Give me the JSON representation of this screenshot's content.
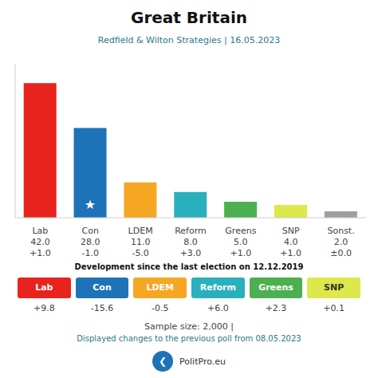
{
  "chart_data": {
    "type": "bar",
    "title": "Great Britain",
    "subtitle": "Redfield & Wilton Strategies | 16.05.2023",
    "subtitle_color": "#2a7a8c",
    "categories": [
      "Lab",
      "Con",
      "LDEM",
      "Reform",
      "Greens",
      "SNP",
      "Sonst."
    ],
    "values": [
      42.0,
      28.0,
      11.0,
      8.0,
      5.0,
      4.0,
      2.0
    ],
    "value_labels": [
      "42.0",
      "28.0",
      "11.0",
      "8.0",
      "5.0",
      "4.0",
      "2.0"
    ],
    "changes": [
      "+1.0",
      "-1.0",
      "-5.0",
      "+3.0",
      "+1.0",
      "+1.0",
      "±0.0"
    ],
    "colors": [
      "#e8231e",
      "#1e72b8",
      "#f5a623",
      "#2ab0bc",
      "#4caf50",
      "#dde84a",
      "#9e9e9e"
    ],
    "ylim": [
      0,
      48
    ],
    "tick_labels": false,
    "grid": false,
    "data_labels": true,
    "annotations": [
      {
        "text": "★",
        "category": "Con"
      }
    ],
    "development": {
      "title": "Development since the last election on 12.12.2019",
      "categories": [
        "Lab",
        "Con",
        "LDEM",
        "Reform",
        "Greens",
        "SNP"
      ],
      "changes": [
        "+9.8",
        "-15.6",
        "-0.5",
        "+6.0",
        "+2.3",
        "+0.1"
      ],
      "colors": [
        "#e8231e",
        "#1e72b8",
        "#f5a623",
        "#2ab0bc",
        "#4caf50",
        "#dde84a"
      ],
      "text_colors": [
        "#ffffff",
        "#ffffff",
        "#ffffff",
        "#ffffff",
        "#ffffff",
        "#333333"
      ]
    },
    "sample_size": "Sample size: 2,000 |",
    "footnote": "Displayed changes to the previous poll from 08.05.2023",
    "footnote_color": "#2a7a8c",
    "logo": {
      "text": "PolitPro.eu",
      "icon": "❮",
      "color": "#1e72b8"
    }
  }
}
